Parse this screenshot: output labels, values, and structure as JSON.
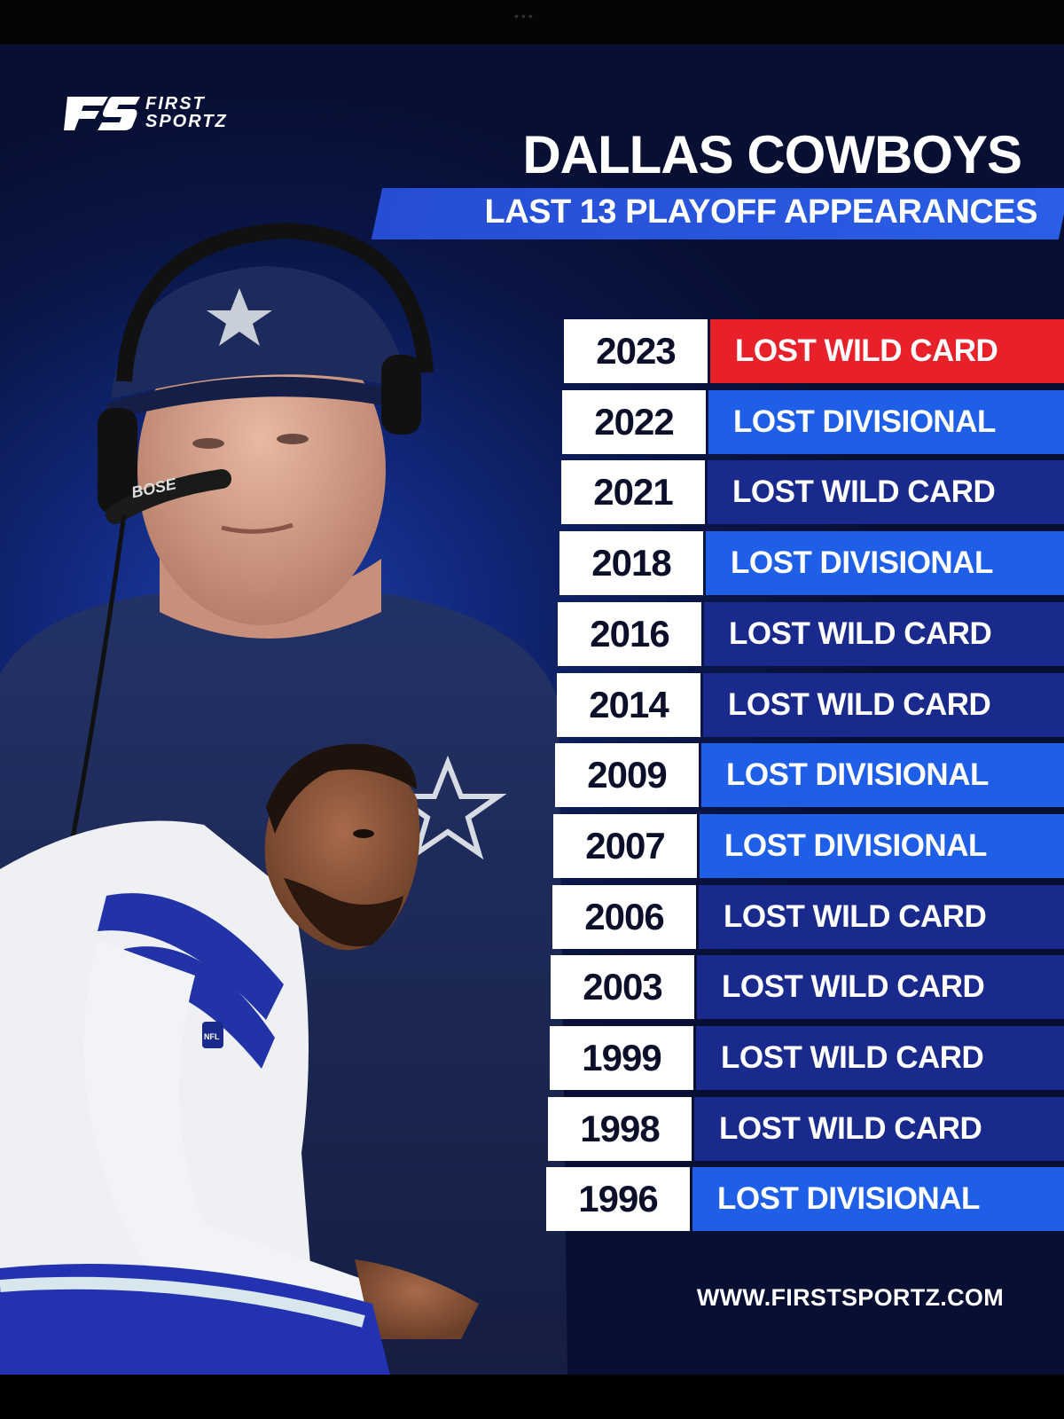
{
  "brand": {
    "line1": "FIRST",
    "line2": "SPORTZ",
    "mark_text": "FS"
  },
  "title": "DALLAS COWBOYS",
  "subtitle": "LAST 13 PLAYOFF APPEARANCES",
  "headset_brand": "BOSE",
  "jersey_badge": "NFL",
  "colors": {
    "background": "#0a1647",
    "highlight_red": "#e8202a",
    "blue_light": "#1f5fe8",
    "blue_dark": "#1a2a8c"
  },
  "appearances": [
    {
      "year": "2023",
      "result": "LOST WILD CARD",
      "color": "#e8202a"
    },
    {
      "year": "2022",
      "result": "LOST DIVISIONAL",
      "color": "#1f5fe8"
    },
    {
      "year": "2021",
      "result": "LOST WILD CARD",
      "color": "#1a2a8c"
    },
    {
      "year": "2018",
      "result": "LOST DIVISIONAL",
      "color": "#1f5fe8"
    },
    {
      "year": "2016",
      "result": "LOST WILD CARD",
      "color": "#1a2a8c"
    },
    {
      "year": "2014",
      "result": "LOST WILD CARD",
      "color": "#1a2a8c"
    },
    {
      "year": "2009",
      "result": "LOST DIVISIONAL",
      "color": "#1f5fe8"
    },
    {
      "year": "2007",
      "result": "LOST DIVISIONAL",
      "color": "#1f5fe8"
    },
    {
      "year": "2006",
      "result": "LOST WILD CARD",
      "color": "#1a2a8c"
    },
    {
      "year": "2003",
      "result": "LOST WILD CARD",
      "color": "#1a2a8c"
    },
    {
      "year": "1999",
      "result": "LOST WILD CARD",
      "color": "#1a2a8c"
    },
    {
      "year": "1998",
      "result": "LOST WILD CARD",
      "color": "#1a2a8c"
    },
    {
      "year": "1996",
      "result": "LOST DIVISIONAL",
      "color": "#1f5fe8"
    }
  ],
  "website": "WWW.FIRSTSPORTZ.COM"
}
